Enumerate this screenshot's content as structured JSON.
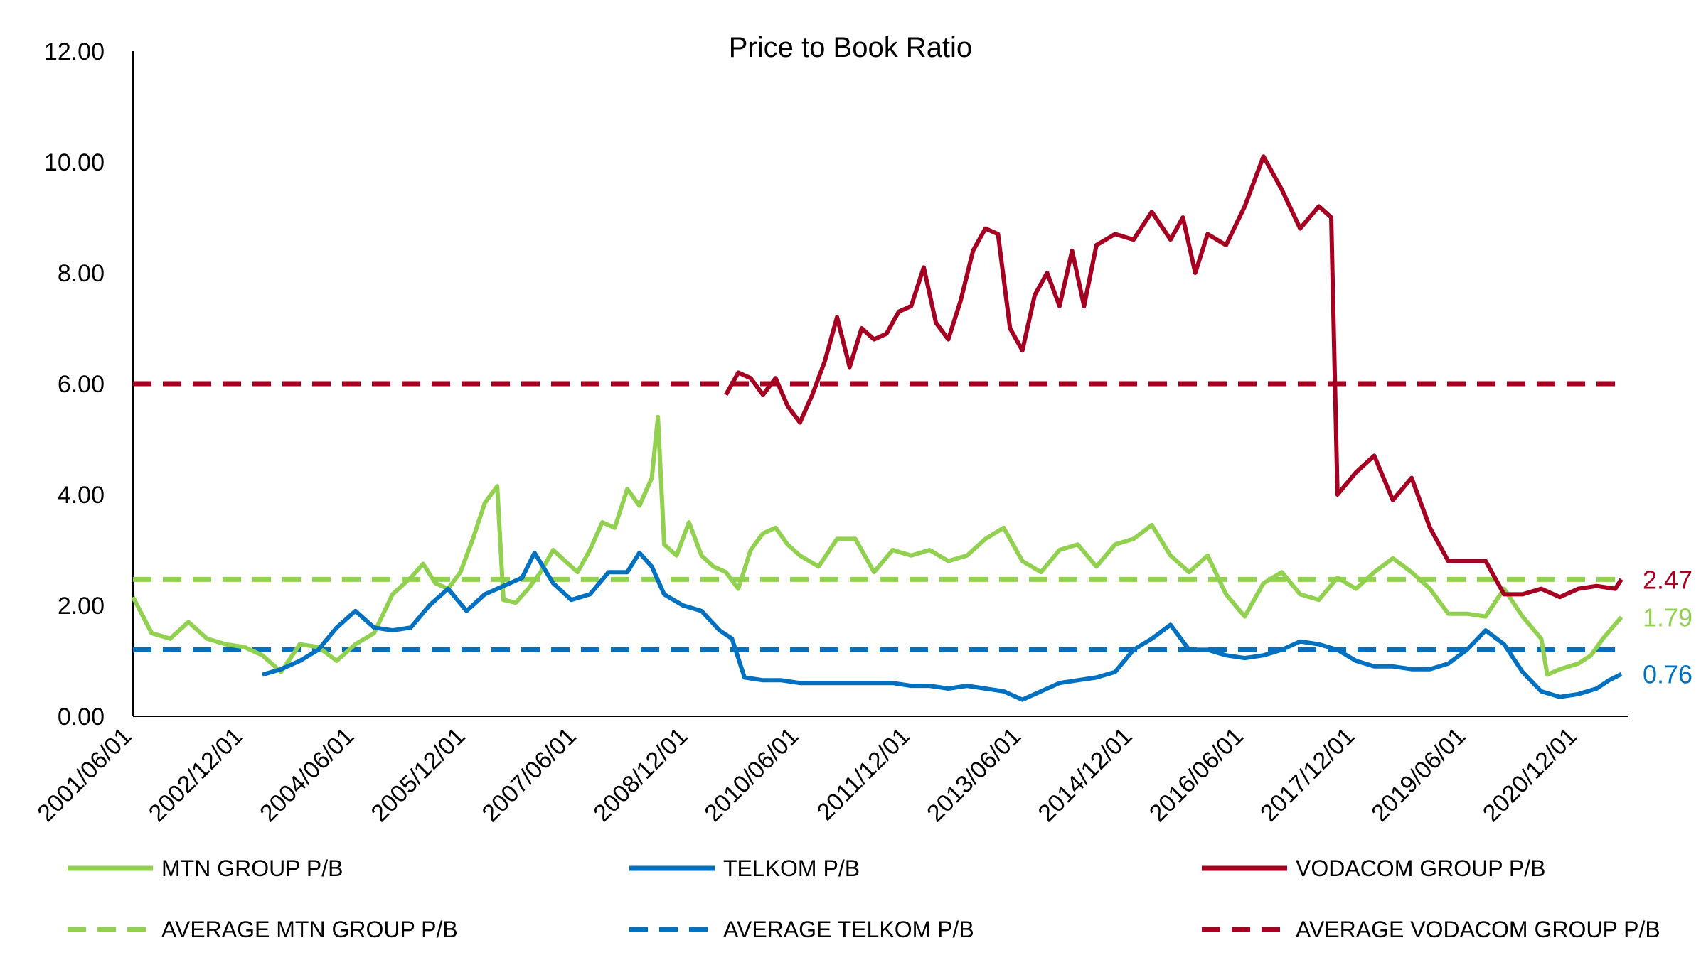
{
  "chart_data": {
    "type": "line",
    "title": "Price to Book Ratio",
    "xlabel": "",
    "ylabel": "",
    "ylim": [
      0,
      12
    ],
    "y_ticks": [
      "0.00",
      "2.00",
      "4.00",
      "6.00",
      "8.00",
      "10.00",
      "12.00"
    ],
    "x_range": [
      "2001/06/01",
      "2021/07/01"
    ],
    "x_ticks": [
      "2001/06/01",
      "2002/12/01",
      "2004/06/01",
      "2005/12/01",
      "2007/06/01",
      "2008/12/01",
      "2010/06/01",
      "2011/12/01",
      "2013/06/01",
      "2014/12/01",
      "2016/06/01",
      "2017/12/01",
      "2019/06/01",
      "2020/12/01"
    ],
    "grid": false,
    "legend_position": "bottom",
    "series": [
      {
        "name": "MTN GROUP P/B",
        "color": "#92D050",
        "style": "solid",
        "end_label": "1.79",
        "points": [
          [
            "2001/06/01",
            2.15
          ],
          [
            "2001/09/01",
            1.5
          ],
          [
            "2001/12/01",
            1.4
          ],
          [
            "2002/03/01",
            1.7
          ],
          [
            "2002/06/01",
            1.4
          ],
          [
            "2002/09/01",
            1.3
          ],
          [
            "2002/12/01",
            1.25
          ],
          [
            "2003/03/01",
            1.1
          ],
          [
            "2003/06/01",
            0.8
          ],
          [
            "2003/09/01",
            1.3
          ],
          [
            "2003/12/01",
            1.25
          ],
          [
            "2004/03/01",
            1.0
          ],
          [
            "2004/06/01",
            1.3
          ],
          [
            "2004/09/01",
            1.5
          ],
          [
            "2004/12/01",
            2.2
          ],
          [
            "2005/03/01",
            2.5
          ],
          [
            "2005/05/01",
            2.75
          ],
          [
            "2005/07/01",
            2.4
          ],
          [
            "2005/09/01",
            2.3
          ],
          [
            "2005/11/01",
            2.6
          ],
          [
            "2006/01/01",
            3.2
          ],
          [
            "2006/03/01",
            3.85
          ],
          [
            "2006/05/01",
            4.15
          ],
          [
            "2006/06/01",
            2.1
          ],
          [
            "2006/08/01",
            2.05
          ],
          [
            "2006/10/01",
            2.3
          ],
          [
            "2006/12/01",
            2.6
          ],
          [
            "2007/02/01",
            3.0
          ],
          [
            "2007/04/01",
            2.8
          ],
          [
            "2007/06/01",
            2.6
          ],
          [
            "2007/08/01",
            3.0
          ],
          [
            "2007/10/01",
            3.5
          ],
          [
            "2007/12/01",
            3.4
          ],
          [
            "2008/02/01",
            4.1
          ],
          [
            "2008/04/01",
            3.8
          ],
          [
            "2008/06/01",
            4.3
          ],
          [
            "2008/07/01",
            5.4
          ],
          [
            "2008/08/01",
            3.1
          ],
          [
            "2008/10/01",
            2.9
          ],
          [
            "2008/12/01",
            3.5
          ],
          [
            "2009/02/01",
            2.9
          ],
          [
            "2009/04/01",
            2.7
          ],
          [
            "2009/06/01",
            2.6
          ],
          [
            "2009/08/01",
            2.3
          ],
          [
            "2009/10/01",
            3.0
          ],
          [
            "2009/12/01",
            3.3
          ],
          [
            "2010/02/01",
            3.4
          ],
          [
            "2010/04/01",
            3.1
          ],
          [
            "2010/06/01",
            2.9
          ],
          [
            "2010/09/01",
            2.7
          ],
          [
            "2010/12/01",
            3.2
          ],
          [
            "2011/03/01",
            3.2
          ],
          [
            "2011/06/01",
            2.6
          ],
          [
            "2011/09/01",
            3.0
          ],
          [
            "2011/12/01",
            2.9
          ],
          [
            "2012/03/01",
            3.0
          ],
          [
            "2012/06/01",
            2.8
          ],
          [
            "2012/09/01",
            2.9
          ],
          [
            "2012/12/01",
            3.2
          ],
          [
            "2013/03/01",
            3.4
          ],
          [
            "2013/06/01",
            2.8
          ],
          [
            "2013/09/01",
            2.6
          ],
          [
            "2013/12/01",
            3.0
          ],
          [
            "2014/03/01",
            3.1
          ],
          [
            "2014/06/01",
            2.7
          ],
          [
            "2014/09/01",
            3.1
          ],
          [
            "2014/12/01",
            3.2
          ],
          [
            "2015/03/01",
            3.45
          ],
          [
            "2015/06/01",
            2.9
          ],
          [
            "2015/09/01",
            2.6
          ],
          [
            "2015/12/01",
            2.9
          ],
          [
            "2016/03/01",
            2.2
          ],
          [
            "2016/06/01",
            1.8
          ],
          [
            "2016/09/01",
            2.4
          ],
          [
            "2016/12/01",
            2.6
          ],
          [
            "2017/03/01",
            2.2
          ],
          [
            "2017/06/01",
            2.1
          ],
          [
            "2017/09/01",
            2.5
          ],
          [
            "2017/12/01",
            2.3
          ],
          [
            "2018/03/01",
            2.6
          ],
          [
            "2018/06/01",
            2.85
          ],
          [
            "2018/09/01",
            2.6
          ],
          [
            "2018/12/01",
            2.3
          ],
          [
            "2019/03/01",
            1.85
          ],
          [
            "2019/06/01",
            1.85
          ],
          [
            "2019/09/01",
            1.8
          ],
          [
            "2019/12/01",
            2.3
          ],
          [
            "2020/03/01",
            1.8
          ],
          [
            "2020/06/01",
            1.4
          ],
          [
            "2020/07/01",
            0.75
          ],
          [
            "2020/09/01",
            0.85
          ],
          [
            "2020/12/01",
            0.95
          ],
          [
            "2021/02/01",
            1.1
          ],
          [
            "2021/04/01",
            1.4
          ],
          [
            "2021/07/01",
            1.79
          ]
        ]
      },
      {
        "name": "TELKOM P/B",
        "color": "#0070C0",
        "style": "solid",
        "end_label": "0.76",
        "points": [
          [
            "2003/03/01",
            0.75
          ],
          [
            "2003/06/01",
            0.85
          ],
          [
            "2003/09/01",
            1.0
          ],
          [
            "2003/12/01",
            1.2
          ],
          [
            "2004/03/01",
            1.6
          ],
          [
            "2004/06/01",
            1.9
          ],
          [
            "2004/09/01",
            1.6
          ],
          [
            "2004/12/01",
            1.55
          ],
          [
            "2005/03/01",
            1.6
          ],
          [
            "2005/06/01",
            2.0
          ],
          [
            "2005/09/01",
            2.3
          ],
          [
            "2005/12/01",
            1.9
          ],
          [
            "2006/03/01",
            2.2
          ],
          [
            "2006/06/01",
            2.35
          ],
          [
            "2006/09/01",
            2.5
          ],
          [
            "2006/11/01",
            2.95
          ],
          [
            "2007/02/01",
            2.4
          ],
          [
            "2007/05/01",
            2.1
          ],
          [
            "2007/08/01",
            2.2
          ],
          [
            "2007/11/01",
            2.6
          ],
          [
            "2008/02/01",
            2.6
          ],
          [
            "2008/04/01",
            2.95
          ],
          [
            "2008/06/01",
            2.7
          ],
          [
            "2008/08/01",
            2.2
          ],
          [
            "2008/11/01",
            2.0
          ],
          [
            "2009/02/01",
            1.9
          ],
          [
            "2009/05/01",
            1.55
          ],
          [
            "2009/07/01",
            1.4
          ],
          [
            "2009/09/01",
            0.7
          ],
          [
            "2009/12/01",
            0.65
          ],
          [
            "2010/03/01",
            0.65
          ],
          [
            "2010/06/01",
            0.6
          ],
          [
            "2010/09/01",
            0.6
          ],
          [
            "2010/12/01",
            0.6
          ],
          [
            "2011/03/01",
            0.6
          ],
          [
            "2011/06/01",
            0.6
          ],
          [
            "2011/09/01",
            0.6
          ],
          [
            "2011/12/01",
            0.55
          ],
          [
            "2012/03/01",
            0.55
          ],
          [
            "2012/06/01",
            0.5
          ],
          [
            "2012/09/01",
            0.55
          ],
          [
            "2012/12/01",
            0.5
          ],
          [
            "2013/03/01",
            0.45
          ],
          [
            "2013/06/01",
            0.3
          ],
          [
            "2013/09/01",
            0.45
          ],
          [
            "2013/12/01",
            0.6
          ],
          [
            "2014/03/01",
            0.65
          ],
          [
            "2014/06/01",
            0.7
          ],
          [
            "2014/09/01",
            0.8
          ],
          [
            "2014/12/01",
            1.2
          ],
          [
            "2015/03/01",
            1.4
          ],
          [
            "2015/06/01",
            1.65
          ],
          [
            "2015/09/01",
            1.2
          ],
          [
            "2015/12/01",
            1.2
          ],
          [
            "2016/03/01",
            1.1
          ],
          [
            "2016/06/01",
            1.05
          ],
          [
            "2016/09/01",
            1.1
          ],
          [
            "2016/12/01",
            1.2
          ],
          [
            "2017/03/01",
            1.35
          ],
          [
            "2017/06/01",
            1.3
          ],
          [
            "2017/09/01",
            1.2
          ],
          [
            "2017/12/01",
            1.0
          ],
          [
            "2018/03/01",
            0.9
          ],
          [
            "2018/06/01",
            0.9
          ],
          [
            "2018/09/01",
            0.85
          ],
          [
            "2018/12/01",
            0.85
          ],
          [
            "2019/03/01",
            0.95
          ],
          [
            "2019/06/01",
            1.2
          ],
          [
            "2019/09/01",
            1.55
          ],
          [
            "2019/12/01",
            1.3
          ],
          [
            "2020/03/01",
            0.8
          ],
          [
            "2020/06/01",
            0.45
          ],
          [
            "2020/09/01",
            0.35
          ],
          [
            "2020/12/01",
            0.4
          ],
          [
            "2021/03/01",
            0.5
          ],
          [
            "2021/05/01",
            0.65
          ],
          [
            "2021/07/01",
            0.76
          ]
        ]
      },
      {
        "name": "VODACOM GROUP  P/B",
        "color": "#A50021",
        "style": "solid",
        "end_label": "2.47",
        "points": [
          [
            "2009/06/01",
            5.8
          ],
          [
            "2009/08/01",
            6.2
          ],
          [
            "2009/10/01",
            6.1
          ],
          [
            "2009/12/01",
            5.8
          ],
          [
            "2010/02/01",
            6.1
          ],
          [
            "2010/04/01",
            5.6
          ],
          [
            "2010/06/01",
            5.3
          ],
          [
            "2010/08/01",
            5.8
          ],
          [
            "2010/10/01",
            6.4
          ],
          [
            "2010/12/01",
            7.2
          ],
          [
            "2011/02/01",
            6.3
          ],
          [
            "2011/04/01",
            7.0
          ],
          [
            "2011/06/01",
            6.8
          ],
          [
            "2011/08/01",
            6.9
          ],
          [
            "2011/10/01",
            7.3
          ],
          [
            "2011/12/01",
            7.4
          ],
          [
            "2012/02/01",
            8.1
          ],
          [
            "2012/04/01",
            7.1
          ],
          [
            "2012/06/01",
            6.8
          ],
          [
            "2012/08/01",
            7.5
          ],
          [
            "2012/10/01",
            8.4
          ],
          [
            "2012/12/01",
            8.8
          ],
          [
            "2013/02/01",
            8.7
          ],
          [
            "2013/04/01",
            7.0
          ],
          [
            "2013/06/01",
            6.6
          ],
          [
            "2013/08/01",
            7.6
          ],
          [
            "2013/10/01",
            8.0
          ],
          [
            "2013/12/01",
            7.4
          ],
          [
            "2014/02/01",
            8.4
          ],
          [
            "2014/04/01",
            7.4
          ],
          [
            "2014/06/01",
            8.5
          ],
          [
            "2014/09/01",
            8.7
          ],
          [
            "2014/12/01",
            8.6
          ],
          [
            "2015/03/01",
            9.1
          ],
          [
            "2015/06/01",
            8.6
          ],
          [
            "2015/08/01",
            9.0
          ],
          [
            "2015/10/01",
            8.0
          ],
          [
            "2015/12/01",
            8.7
          ],
          [
            "2016/03/01",
            8.5
          ],
          [
            "2016/06/01",
            9.2
          ],
          [
            "2016/09/01",
            10.1
          ],
          [
            "2016/12/01",
            9.5
          ],
          [
            "2017/03/01",
            8.8
          ],
          [
            "2017/06/01",
            9.2
          ],
          [
            "2017/08/01",
            9.0
          ],
          [
            "2017/09/01",
            4.0
          ],
          [
            "2017/12/01",
            4.4
          ],
          [
            "2018/03/01",
            4.7
          ],
          [
            "2018/06/01",
            3.9
          ],
          [
            "2018/09/01",
            4.3
          ],
          [
            "2018/12/01",
            3.4
          ],
          [
            "2019/03/01",
            2.8
          ],
          [
            "2019/06/01",
            2.8
          ],
          [
            "2019/09/01",
            2.8
          ],
          [
            "2019/12/01",
            2.2
          ],
          [
            "2020/03/01",
            2.2
          ],
          [
            "2020/06/01",
            2.3
          ],
          [
            "2020/09/01",
            2.15
          ],
          [
            "2020/12/01",
            2.3
          ],
          [
            "2021/03/01",
            2.35
          ],
          [
            "2021/06/01",
            2.3
          ],
          [
            "2021/07/01",
            2.47
          ]
        ]
      },
      {
        "name": "AVERAGE MTN GROUP P/B",
        "color": "#92D050",
        "style": "dashed",
        "value": 2.47
      },
      {
        "name": "AVERAGE TELKOM P/B",
        "color": "#0070C0",
        "style": "dashed",
        "value": 1.2
      },
      {
        "name": "AVERAGE VODACOM GROUP P/B",
        "color": "#A50021",
        "style": "dashed",
        "value": 6.0
      }
    ]
  }
}
